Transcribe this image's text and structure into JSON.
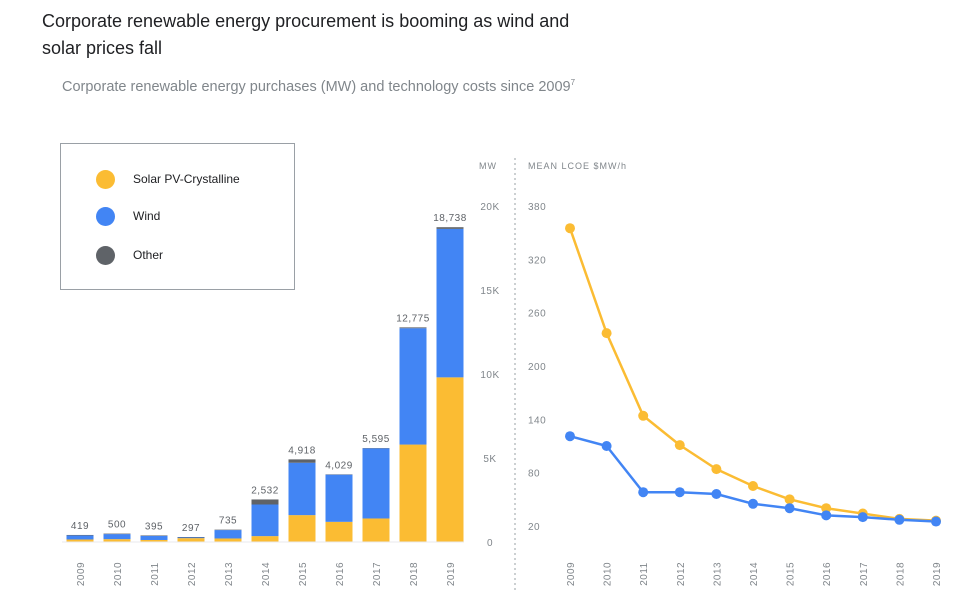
{
  "header": {
    "title": "Corporate renewable energy procurement is booming as wind and solar prices fall",
    "subtitle": "Corporate renewable energy purchases (MW) and technology costs since 2009",
    "footnote": "7"
  },
  "legend": {
    "items": [
      {
        "label": "Solar PV-Crystalline",
        "color": "#fbbc33"
      },
      {
        "label": "Wind",
        "color": "#4285f4"
      },
      {
        "label": "Other",
        "color": "#5f6368"
      }
    ]
  },
  "chart_data": [
    {
      "type": "bar",
      "stacked": true,
      "title": "Corporate renewable energy purchases",
      "ylabel": "MW",
      "ylim": [
        0,
        20000
      ],
      "yticks": [
        0,
        5000,
        10000,
        15000,
        20000
      ],
      "ytick_labels": [
        "0",
        "5K",
        "10K",
        "15K",
        "20K"
      ],
      "categories": [
        "2009",
        "2010",
        "2011",
        "2012",
        "2013",
        "2014",
        "2015",
        "2016",
        "2017",
        "2018",
        "2019"
      ],
      "series": [
        {
          "name": "Solar PV-Crystalline",
          "color": "#fbbc33",
          "values": [
            150,
            170,
            120,
            230,
            210,
            350,
            1600,
            1200,
            1400,
            5800,
            9800
          ]
        },
        {
          "name": "Wind",
          "color": "#4285f4",
          "values": [
            239,
            300,
            245,
            37,
            500,
            1882,
            3118,
            2809,
            4175,
            6925,
            8838
          ]
        },
        {
          "name": "Other",
          "color": "#5f6368",
          "values": [
            30,
            30,
            30,
            30,
            25,
            300,
            200,
            20,
            20,
            50,
            100
          ]
        }
      ],
      "totals": [
        419,
        500,
        395,
        297,
        735,
        2532,
        4918,
        4029,
        5595,
        12775,
        18738
      ],
      "total_labels": [
        "419",
        "500",
        "395",
        "297",
        "735",
        "2,532",
        "4,918",
        "4,029",
        "5,595",
        "12,775",
        "18,738"
      ]
    },
    {
      "type": "line",
      "title": "Technology costs",
      "ylabel": "MEAN LCOE $MW/h",
      "ylim": [
        20,
        380
      ],
      "yticks": [
        20,
        80,
        140,
        200,
        260,
        320,
        380
      ],
      "ytick_labels": [
        "20",
        "80",
        "140",
        "200",
        "260",
        "320",
        "380"
      ],
      "x": [
        "2009",
        "2010",
        "2011",
        "2012",
        "2013",
        "2014",
        "2015",
        "2016",
        "2017",
        "2018",
        "2019"
      ],
      "series": [
        {
          "name": "Solar PV-Crystalline",
          "color": "#fbbc33",
          "values": [
            355,
            237,
            144,
            111,
            84,
            65,
            50,
            40,
            34,
            28,
            26
          ]
        },
        {
          "name": "Wind",
          "color": "#4285f4",
          "values": [
            121,
            110,
            58,
            58,
            56,
            45,
            40,
            32,
            30,
            27,
            25
          ]
        }
      ]
    }
  ]
}
